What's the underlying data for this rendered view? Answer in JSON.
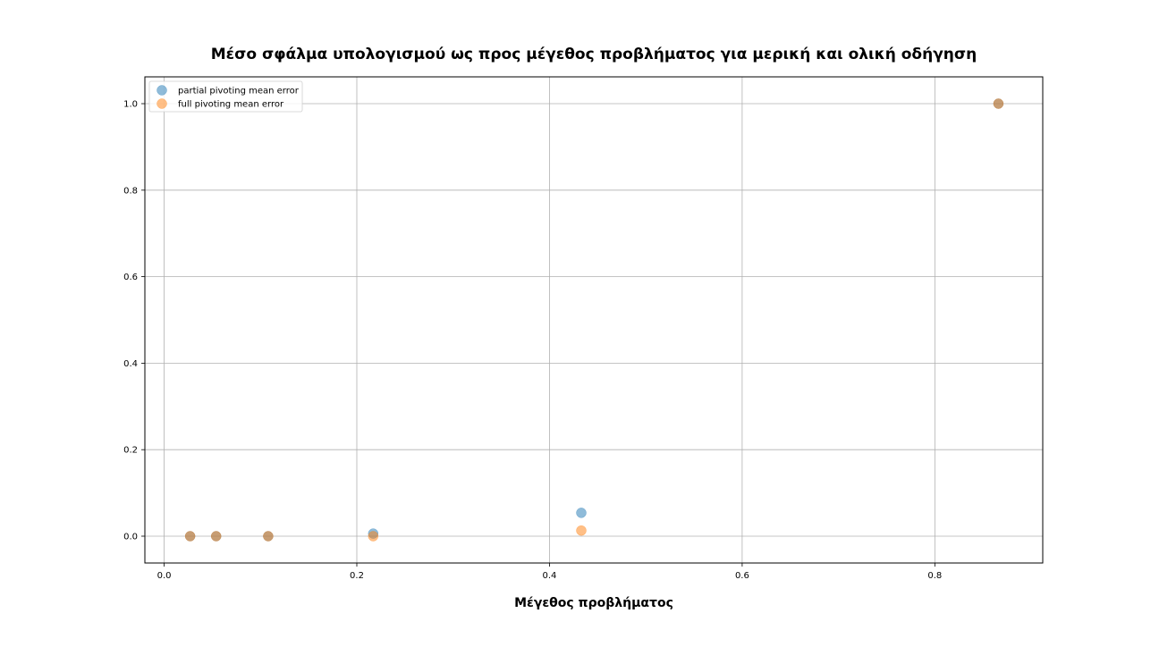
{
  "chart_data": {
    "type": "scatter",
    "title": "Μέσο σφάλμα υπολογισμού ως προς μέγεθος προβλήματος για μερική και ολική οδήγηση",
    "xlabel": "Μέγεθος προβλήματος",
    "ylabel": "",
    "xlim": [
      -0.02,
      0.912
    ],
    "ylim": [
      -0.062,
      1.062
    ],
    "xticks": [
      0.0,
      0.2,
      0.4,
      0.6,
      0.8
    ],
    "yticks": [
      0.0,
      0.2,
      0.4,
      0.6,
      0.8,
      1.0
    ],
    "xtick_labels": [
      "0.0",
      "0.2",
      "0.4",
      "0.6",
      "0.8"
    ],
    "ytick_labels": [
      "0.0",
      "0.2",
      "0.4",
      "0.6",
      "0.8",
      "1.0"
    ],
    "grid": true,
    "legend_position": "top-left",
    "series": [
      {
        "name": "partial pivoting mean error",
        "color": "#1f77b4",
        "x": [
          0.027,
          0.054,
          0.108,
          0.217,
          0.433,
          0.866
        ],
        "y": [
          0.0,
          0.0,
          0.0,
          0.006,
          0.054,
          1.0
        ]
      },
      {
        "name": "full pivoting mean error",
        "color": "#ff7f0e",
        "x": [
          0.027,
          0.054,
          0.108,
          0.217,
          0.433,
          0.866
        ],
        "y": [
          0.0,
          0.0,
          0.0,
          0.0,
          0.013,
          1.0
        ]
      }
    ]
  }
}
